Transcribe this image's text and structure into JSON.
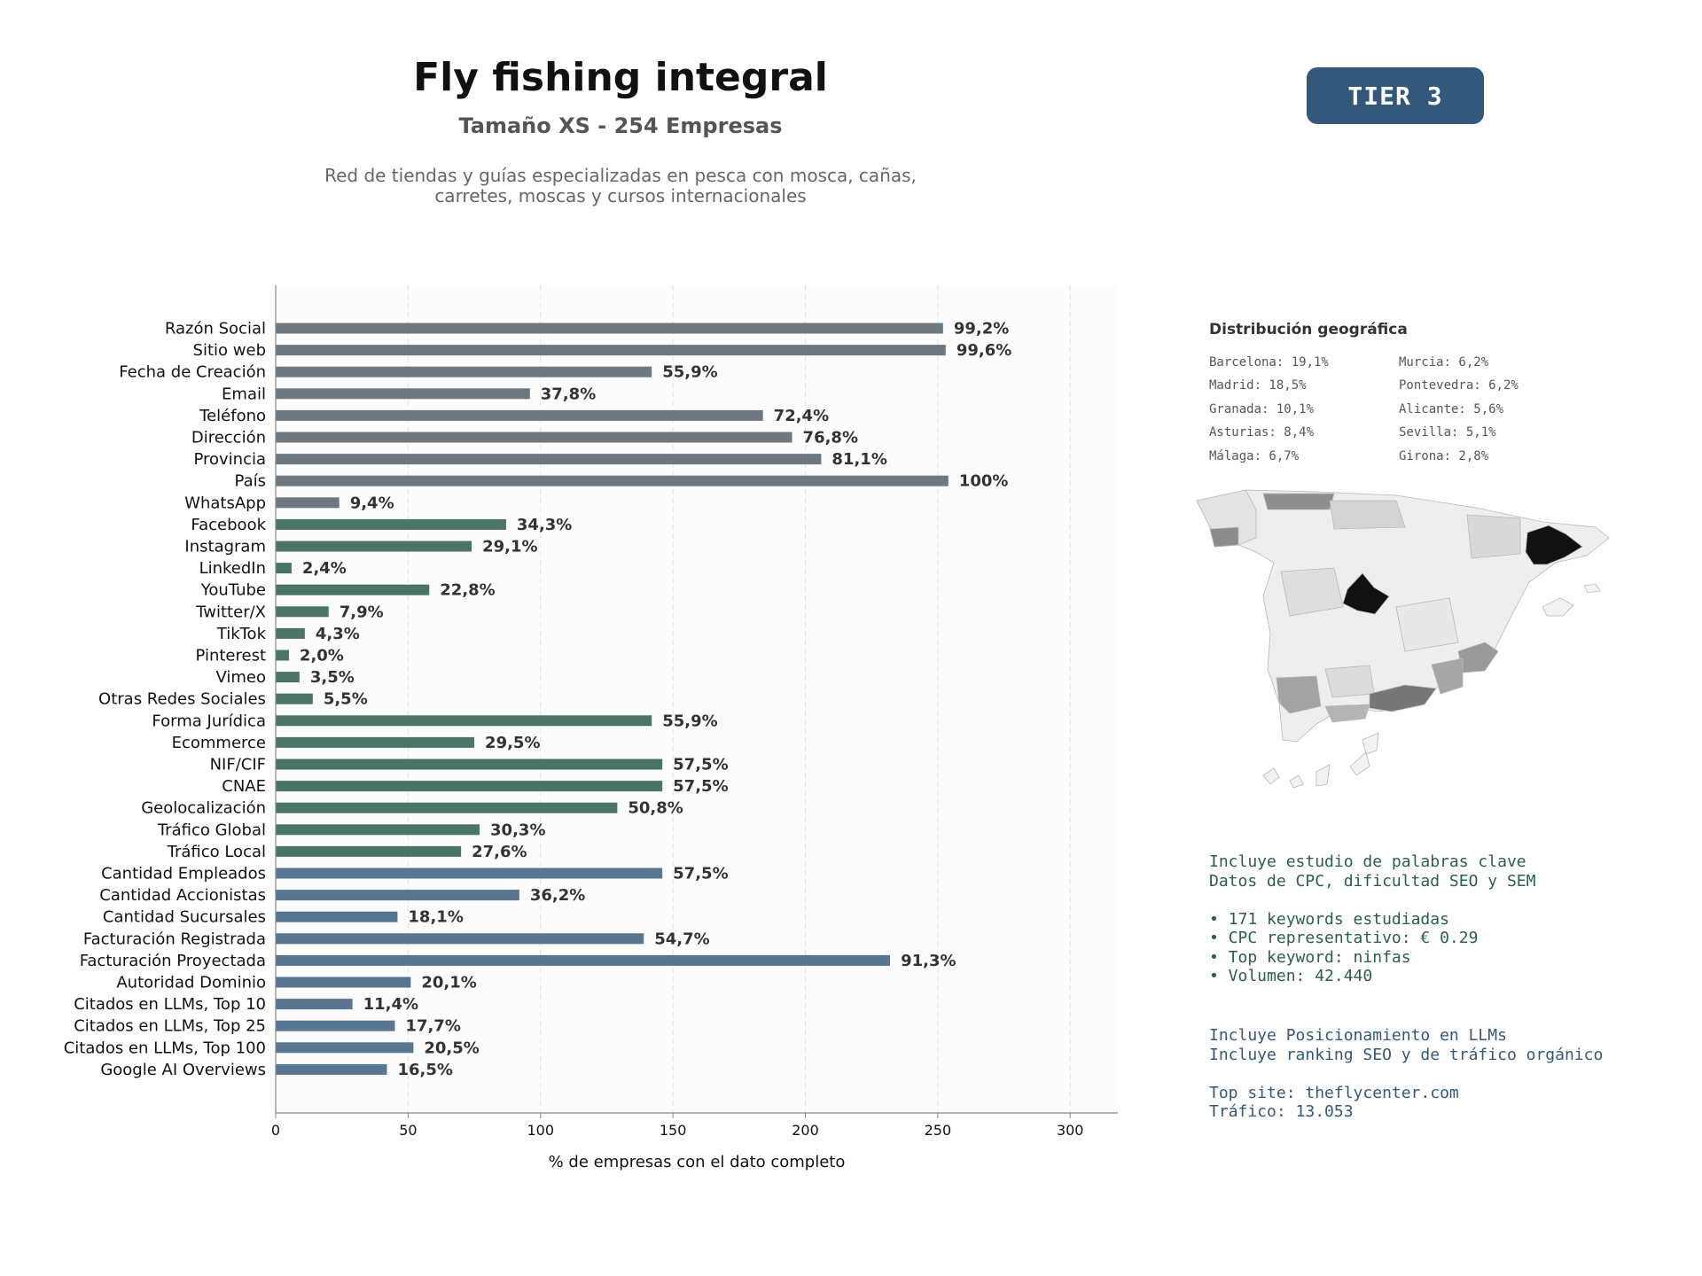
{
  "header": {
    "title": "Fly fishing integral",
    "subtitle": "Tamaño XS - 254 Empresas",
    "description_line1": "Red de tiendas y guías especializadas en pesca con mosca, cañas,",
    "description_line2": "carretes, moscas y cursos internacionales",
    "tier": "TIER 3"
  },
  "chart_data": {
    "type": "bar",
    "orientation": "horizontal",
    "xlabel": "% de empresas con el dato completo",
    "xlim": [
      0,
      318
    ],
    "xticks": [
      0,
      50,
      100,
      150,
      200,
      250,
      300
    ],
    "grid": "vertical dashed",
    "colors": {
      "basic": "#6e7880",
      "social": "#4a7565",
      "business": "#58768f"
    },
    "categories": [
      "Razón Social",
      "Sitio web",
      "Fecha de Creación",
      "Email",
      "Teléfono",
      "Dirección",
      "Provincia",
      "País",
      "WhatsApp",
      "Facebook",
      "Instagram",
      "LinkedIn",
      "YouTube",
      "Twitter/X",
      "TikTok",
      "Pinterest",
      "Vimeo",
      "Otras Redes Sociales",
      "Forma Jurídica",
      "Ecommerce",
      "NIF/CIF",
      "CNAE",
      "Geolocalización",
      "Tráfico Global",
      "Tráfico Local",
      "Cantidad Empleados",
      "Cantidad Accionistas",
      "Cantidad Sucursales",
      "Facturación Registrada",
      "Facturación Proyectada",
      "Autoridad Dominio",
      "Citados en LLMs, Top 10",
      "Citados en LLMs, Top 25",
      "Citados en LLMs, Top 100",
      "Google AI Overviews"
    ],
    "values": [
      252,
      253,
      142,
      96,
      184,
      195,
      206,
      254,
      24,
      87,
      74,
      6,
      58,
      20,
      11,
      5,
      9,
      14,
      142,
      75,
      146,
      146,
      129,
      77,
      70,
      146,
      92,
      46,
      139,
      232,
      51,
      29,
      45,
      52,
      42
    ],
    "labels": [
      "99,2%",
      "99,6%",
      "55,9%",
      "37,8%",
      "72,4%",
      "76,8%",
      "81,1%",
      "100%",
      "9,4%",
      "34,3%",
      "29,1%",
      "2,4%",
      "22,8%",
      "7,9%",
      "4,3%",
      "2,0%",
      "3,5%",
      "5,5%",
      "55,9%",
      "29,5%",
      "57,5%",
      "57,5%",
      "50,8%",
      "30,3%",
      "27,6%",
      "57,5%",
      "36,2%",
      "18,1%",
      "54,7%",
      "91,3%",
      "20,1%",
      "11,4%",
      "17,7%",
      "20,5%",
      "16,5%"
    ],
    "groups": [
      "basic",
      "basic",
      "basic",
      "basic",
      "basic",
      "basic",
      "basic",
      "basic",
      "basic",
      "social",
      "social",
      "social",
      "social",
      "social",
      "social",
      "social",
      "social",
      "social",
      "social",
      "social",
      "social",
      "social",
      "social",
      "social",
      "social",
      "business",
      "business",
      "business",
      "business",
      "business",
      "business",
      "business",
      "business",
      "business",
      "business"
    ]
  },
  "geo": {
    "title": "Distribución geográfica",
    "items_left": [
      "Barcelona: 19,1%",
      "Madrid: 18,5%",
      "Granada: 10,1%",
      "Asturias: 8,4%",
      "Málaga: 6,7%"
    ],
    "items_right": [
      "Murcia: 6,2%",
      "Pontevedra: 6,2%",
      "Alicante: 5,6%",
      "Sevilla: 5,1%",
      "Girona: 2,8%"
    ]
  },
  "keywords": {
    "line1": "Incluye estudio de palabras clave",
    "line2": "Datos de CPC, dificultad SEO y SEM",
    "bullet1": "• 171 keywords estudiadas",
    "bullet2": "• CPC representativo: € 0.29",
    "bullet3": "• Top keyword: ninfas",
    "bullet4": "• Volumen: 42.440"
  },
  "llm": {
    "line1": "Incluye Posicionamiento en LLMs",
    "line2": "Incluye ranking SEO y de tráfico orgánico",
    "top_site": "Top site: theflycenter.com",
    "traffic": "Tráfico: 13.053"
  }
}
